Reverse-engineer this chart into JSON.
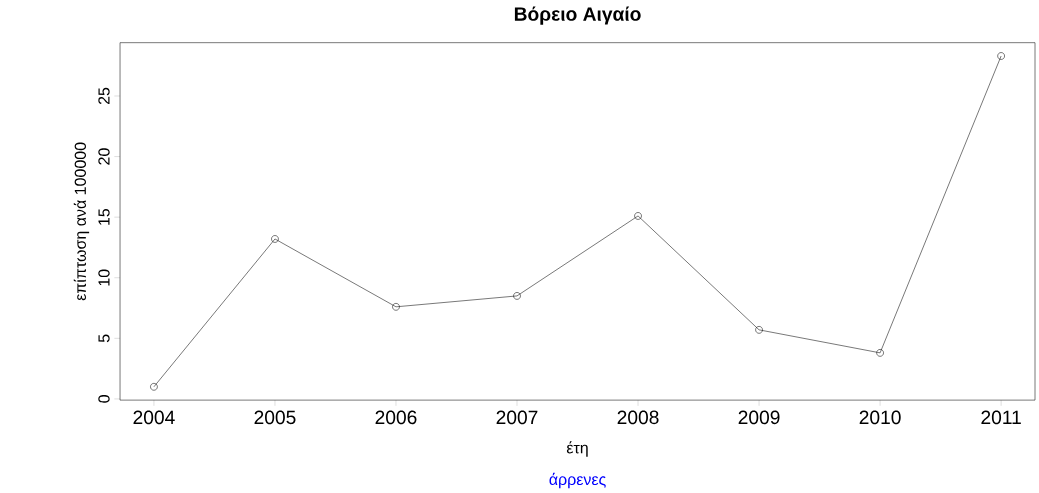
{
  "chart_data": {
    "type": "line",
    "title": "Βόρειο Αιγαίο",
    "xlabel": "έτη",
    "ylabel": "επίπτωση ανά 100000",
    "annotations": [
      "άρρενες"
    ],
    "x": [
      2004,
      2005,
      2006,
      2007,
      2008,
      2009,
      2010,
      2011
    ],
    "series": [
      {
        "color": "#000000",
        "values": [
          1.0,
          13.2,
          7.6,
          8.5,
          15.1,
          5.7,
          3.8,
          28.3
        ]
      }
    ],
    "xlim": [
      2003.72,
      2011.28
    ],
    "ylim": [
      -0.1,
      29.4
    ],
    "xticks": [
      2004,
      2005,
      2006,
      2007,
      2008,
      2009,
      2010,
      2011
    ],
    "yticks": [
      0,
      5,
      10,
      15,
      20,
      25
    ],
    "marker": "circle",
    "line_style": "solid",
    "grid": false
  }
}
